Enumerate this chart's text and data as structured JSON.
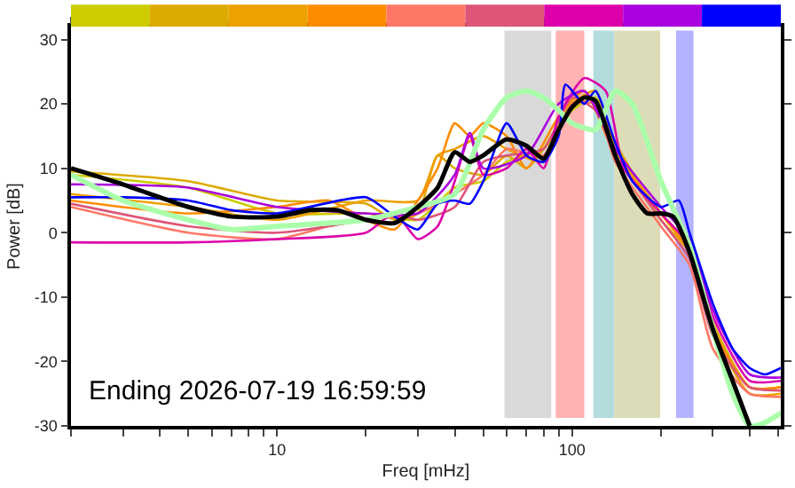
{
  "chart_data": {
    "type": "line",
    "xlabel": "Freq [mHz]",
    "ylabel": "Power [dB]",
    "log": "x",
    "grid": false,
    "line_style": "solid",
    "marker": "none",
    "xlim": [
      2,
      510
    ],
    "ylim": [
      -30,
      32
    ],
    "xticks": [
      {
        "value": 2,
        "label": null
      },
      {
        "value": 3,
        "label": null
      },
      {
        "value": 4,
        "label": null
      },
      {
        "value": 5,
        "label": null
      },
      {
        "value": 6,
        "label": null
      },
      {
        "value": 7,
        "label": null
      },
      {
        "value": 8,
        "label": null
      },
      {
        "value": 9,
        "label": null
      },
      10,
      {
        "value": 20,
        "label": null
      },
      {
        "value": 30,
        "label": null
      },
      {
        "value": 40,
        "label": null
      },
      {
        "value": 50,
        "label": null
      },
      {
        "value": 60,
        "label": null
      },
      {
        "value": 70,
        "label": null
      },
      {
        "value": 80,
        "label": null
      },
      {
        "value": 90,
        "label": null
      },
      100,
      {
        "value": 200,
        "label": null
      },
      {
        "value": 300,
        "label": null
      },
      {
        "value": 400,
        "label": null
      },
      {
        "value": 500,
        "label": null
      }
    ],
    "yticks": [
      -30,
      -20,
      -10,
      0,
      10,
      20,
      30
    ],
    "bands": [
      {
        "axis": "x",
        "from": 59,
        "to": 85,
        "color": "#d9d9d9"
      },
      {
        "axis": "x",
        "from": 88,
        "to": 110,
        "color": "#ffb3b3"
      },
      {
        "axis": "x",
        "from": 118,
        "to": 139,
        "color": "#b3dcdc"
      },
      {
        "axis": "x",
        "from": 139,
        "to": 199,
        "color": "#dcdcb8"
      },
      {
        "axis": "x",
        "from": 225,
        "to": 258,
        "color": "#b3b3ff"
      }
    ],
    "annotations": [
      "Ending 2026-07-19 16:59:59"
    ],
    "series": [
      {
        "color": "#cccc00",
        "x": [
          2,
          5,
          10,
          20,
          30,
          40,
          50,
          60,
          80,
          100,
          120,
          140,
          200,
          250,
          300,
          400,
          510
        ],
        "values": [
          9,
          7,
          3,
          3,
          2,
          7,
          8,
          11,
          13,
          19,
          21,
          13,
          3,
          -2,
          -14,
          -24,
          -24
        ]
      },
      {
        "color": "#ddaa00",
        "x": [
          2,
          5,
          10,
          20,
          25,
          30,
          35,
          40,
          50,
          60,
          70,
          80,
          100,
          120,
          140,
          200,
          250,
          300,
          400,
          510
        ],
        "values": [
          9.5,
          8,
          5,
          4.5,
          2,
          3,
          12,
          10,
          9,
          12,
          10,
          13,
          20,
          20,
          14,
          2,
          -3,
          -14,
          -24,
          -24
        ]
      },
      {
        "color": "#eea000",
        "x": [
          2,
          5,
          10,
          20,
          30,
          35,
          40,
          50,
          60,
          80,
          100,
          120,
          140,
          200,
          250,
          300,
          400,
          510
        ],
        "values": [
          6,
          4,
          2,
          5,
          5,
          12,
          13,
          15,
          13,
          11,
          20,
          22,
          13,
          3,
          -3,
          -15,
          -25,
          -25
        ]
      },
      {
        "color": "#ff8c00",
        "x": [
          2,
          5,
          10,
          15,
          20,
          25,
          30,
          35,
          40,
          45,
          50,
          60,
          70,
          90,
          110,
          140,
          200,
          250,
          300,
          400,
          510
        ],
        "values": [
          5,
          3,
          4,
          5,
          2,
          0.5,
          5,
          10,
          17,
          15,
          17,
          15,
          10,
          18,
          22,
          12,
          3,
          -3,
          -15,
          -24,
          -24
        ]
      },
      {
        "color": "#ff7766",
        "x": [
          2,
          5,
          10,
          15,
          20,
          30,
          40,
          50,
          60,
          80,
          100,
          120,
          140,
          200,
          250,
          300,
          400,
          510
        ],
        "values": [
          4,
          0,
          -1,
          1,
          2,
          3,
          6,
          9,
          13,
          12,
          20,
          20,
          11,
          1,
          -5,
          -18,
          -25,
          -25.5
        ]
      },
      {
        "color": "#dd5577",
        "x": [
          2,
          5,
          10,
          20,
          25,
          30,
          40,
          50,
          60,
          80,
          100,
          120,
          140,
          200,
          250,
          300,
          400,
          510
        ],
        "values": [
          4.5,
          1,
          0,
          2,
          3,
          2,
          4,
          11,
          12,
          13,
          21,
          19,
          12,
          2,
          -4,
          -16,
          -24,
          -24.5
        ]
      },
      {
        "color": "#dd00aa",
        "x": [
          2,
          5,
          10,
          20,
          25,
          30,
          35,
          40,
          45,
          50,
          60,
          70,
          80,
          90,
          110,
          130,
          150,
          200,
          250,
          300,
          400,
          510
        ],
        "values": [
          -1.5,
          -1.5,
          -1,
          0,
          3,
          -1,
          1,
          8,
          15,
          9,
          10,
          13,
          10,
          18,
          24,
          22,
          10,
          3,
          -2,
          -13,
          -23,
          -23
        ]
      },
      {
        "color": "#aa00dd",
        "x": [
          2,
          5,
          10,
          20,
          30,
          40,
          45,
          50,
          70,
          90,
          110,
          140,
          200,
          250,
          300,
          400,
          510
        ],
        "values": [
          7.5,
          7,
          4,
          3,
          3,
          9,
          15.5,
          10,
          12,
          20,
          22,
          13,
          4,
          -1,
          -12,
          -22,
          -22.5
        ]
      },
      {
        "color": "#0000ff",
        "x": [
          2,
          3,
          5,
          7,
          10,
          20,
          25,
          30,
          35,
          40,
          45,
          50,
          60,
          70,
          80,
          90,
          95,
          110,
          120,
          140,
          160,
          200,
          230,
          250,
          300,
          350,
          400,
          450,
          510
        ],
        "values": [
          5.5,
          5.5,
          5,
          3.5,
          3,
          5.5,
          2.5,
          0.5,
          4.5,
          5,
          4.5,
          8,
          17,
          12,
          11,
          15,
          23,
          20,
          22,
          14,
          8,
          4,
          5,
          0,
          -11,
          -18,
          -21,
          -22,
          -21
        ]
      },
      {
        "color": "#aaffaa",
        "x": [
          2,
          3,
          5,
          7,
          10,
          20,
          30,
          40,
          50,
          60,
          70,
          80,
          90,
          100,
          120,
          140,
          160,
          200,
          250,
          300,
          350,
          400,
          450,
          510
        ],
        "values": [
          9,
          5,
          2,
          0.5,
          1,
          2,
          4,
          6,
          16,
          21,
          22,
          21,
          19,
          17,
          16,
          22,
          20,
          8,
          -2,
          -15,
          -25,
          -30,
          -29.5,
          -28
        ]
      },
      {
        "color": "#000000",
        "x": [
          2,
          3,
          4,
          5,
          7,
          10,
          13,
          16,
          20,
          25,
          30,
          35,
          40,
          45,
          50,
          60,
          70,
          80,
          90,
          100,
          110,
          120,
          140,
          160,
          180,
          200,
          220,
          250,
          300,
          350,
          400
        ],
        "values": [
          10,
          7.5,
          5.5,
          4,
          2.5,
          2.5,
          3.5,
          3.5,
          2,
          1.5,
          4,
          7,
          12.5,
          11,
          12,
          14.5,
          13.5,
          11.5,
          16,
          19.5,
          21,
          20.5,
          12,
          6,
          3,
          3,
          2.5,
          -3,
          -15,
          -23,
          -30
        ]
      }
    ]
  }
}
